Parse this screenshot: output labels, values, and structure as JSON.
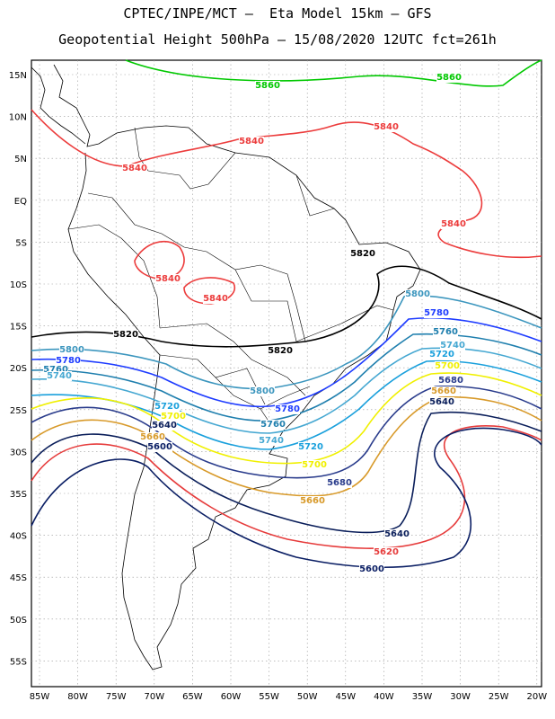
{
  "title_line1": "CPTEC/INPE/MCT –  Eta Model 15km – GFS",
  "title_line2": "Geopotential Height 500hPa – 15/08/2020 12UTC fct=261h",
  "lat_labels": [
    "15N",
    "10N",
    "5N",
    "EQ",
    "5S",
    "10S",
    "15S",
    "20S",
    "25S",
    "30S",
    "35S",
    "40S",
    "45S",
    "50S",
    "55S"
  ],
  "lon_labels": [
    "85W",
    "80W",
    "75W",
    "70W",
    "65W",
    "60W",
    "55W",
    "50W",
    "45W",
    "40W",
    "35W",
    "30W",
    "25W",
    "20W"
  ],
  "contour_colors": {
    "5860": "#00c800",
    "5840": "#ec3c3c",
    "5820": "#000000",
    "5800": "#3c96be",
    "5780": "#1e3cff",
    "5760": "#1f7fae",
    "5740": "#46a8d2",
    "5720": "#1aa0dc",
    "5700": "#f0f000",
    "5680": "#2a3c8c",
    "5660": "#d89a2a",
    "5640": "#0a1e5a",
    "5620": "#e63c3c",
    "5600": "#0a1e64"
  },
  "contour_labels": [
    {
      "text": "5860",
      "level": "5860"
    },
    {
      "text": "5860",
      "level": "5860"
    },
    {
      "text": "5840",
      "level": "5840"
    },
    {
      "text": "5840",
      "level": "5840"
    },
    {
      "text": "5840",
      "level": "5840"
    },
    {
      "text": "5840",
      "level": "5840"
    },
    {
      "text": "5840",
      "level": "5840"
    },
    {
      "text": "5840",
      "level": "5840"
    },
    {
      "text": "5820",
      "level": "5820"
    },
    {
      "text": "5820",
      "level": "5820"
    },
    {
      "text": "5820",
      "level": "5820"
    },
    {
      "text": "5800",
      "level": "5800"
    },
    {
      "text": "5800",
      "level": "5800"
    },
    {
      "text": "5800",
      "level": "5800"
    },
    {
      "text": "5780",
      "level": "5780"
    },
    {
      "text": "5780",
      "level": "5780"
    },
    {
      "text": "5780",
      "level": "5780"
    },
    {
      "text": "5760",
      "level": "5760"
    },
    {
      "text": "5760",
      "level": "5760"
    },
    {
      "text": "5760",
      "level": "5760"
    },
    {
      "text": "5740",
      "level": "5740"
    },
    {
      "text": "5740",
      "level": "5740"
    },
    {
      "text": "5740",
      "level": "5740"
    },
    {
      "text": "5720",
      "level": "5720"
    },
    {
      "text": "5720",
      "level": "5720"
    },
    {
      "text": "5720",
      "level": "5720"
    },
    {
      "text": "5700",
      "level": "5700"
    },
    {
      "text": "5700",
      "level": "5700"
    },
    {
      "text": "5700",
      "level": "5700"
    },
    {
      "text": "5680",
      "level": "5680"
    },
    {
      "text": "5680",
      "level": "5680"
    },
    {
      "text": "5660",
      "level": "5660"
    },
    {
      "text": "5660",
      "level": "5660"
    },
    {
      "text": "5660",
      "level": "5660"
    },
    {
      "text": "5640",
      "level": "5640"
    },
    {
      "text": "5640",
      "level": "5640"
    },
    {
      "text": "5640",
      "level": "5640"
    },
    {
      "text": "5620",
      "level": "5620"
    },
    {
      "text": "5600",
      "level": "5600"
    },
    {
      "text": "5600",
      "level": "5600"
    }
  ]
}
